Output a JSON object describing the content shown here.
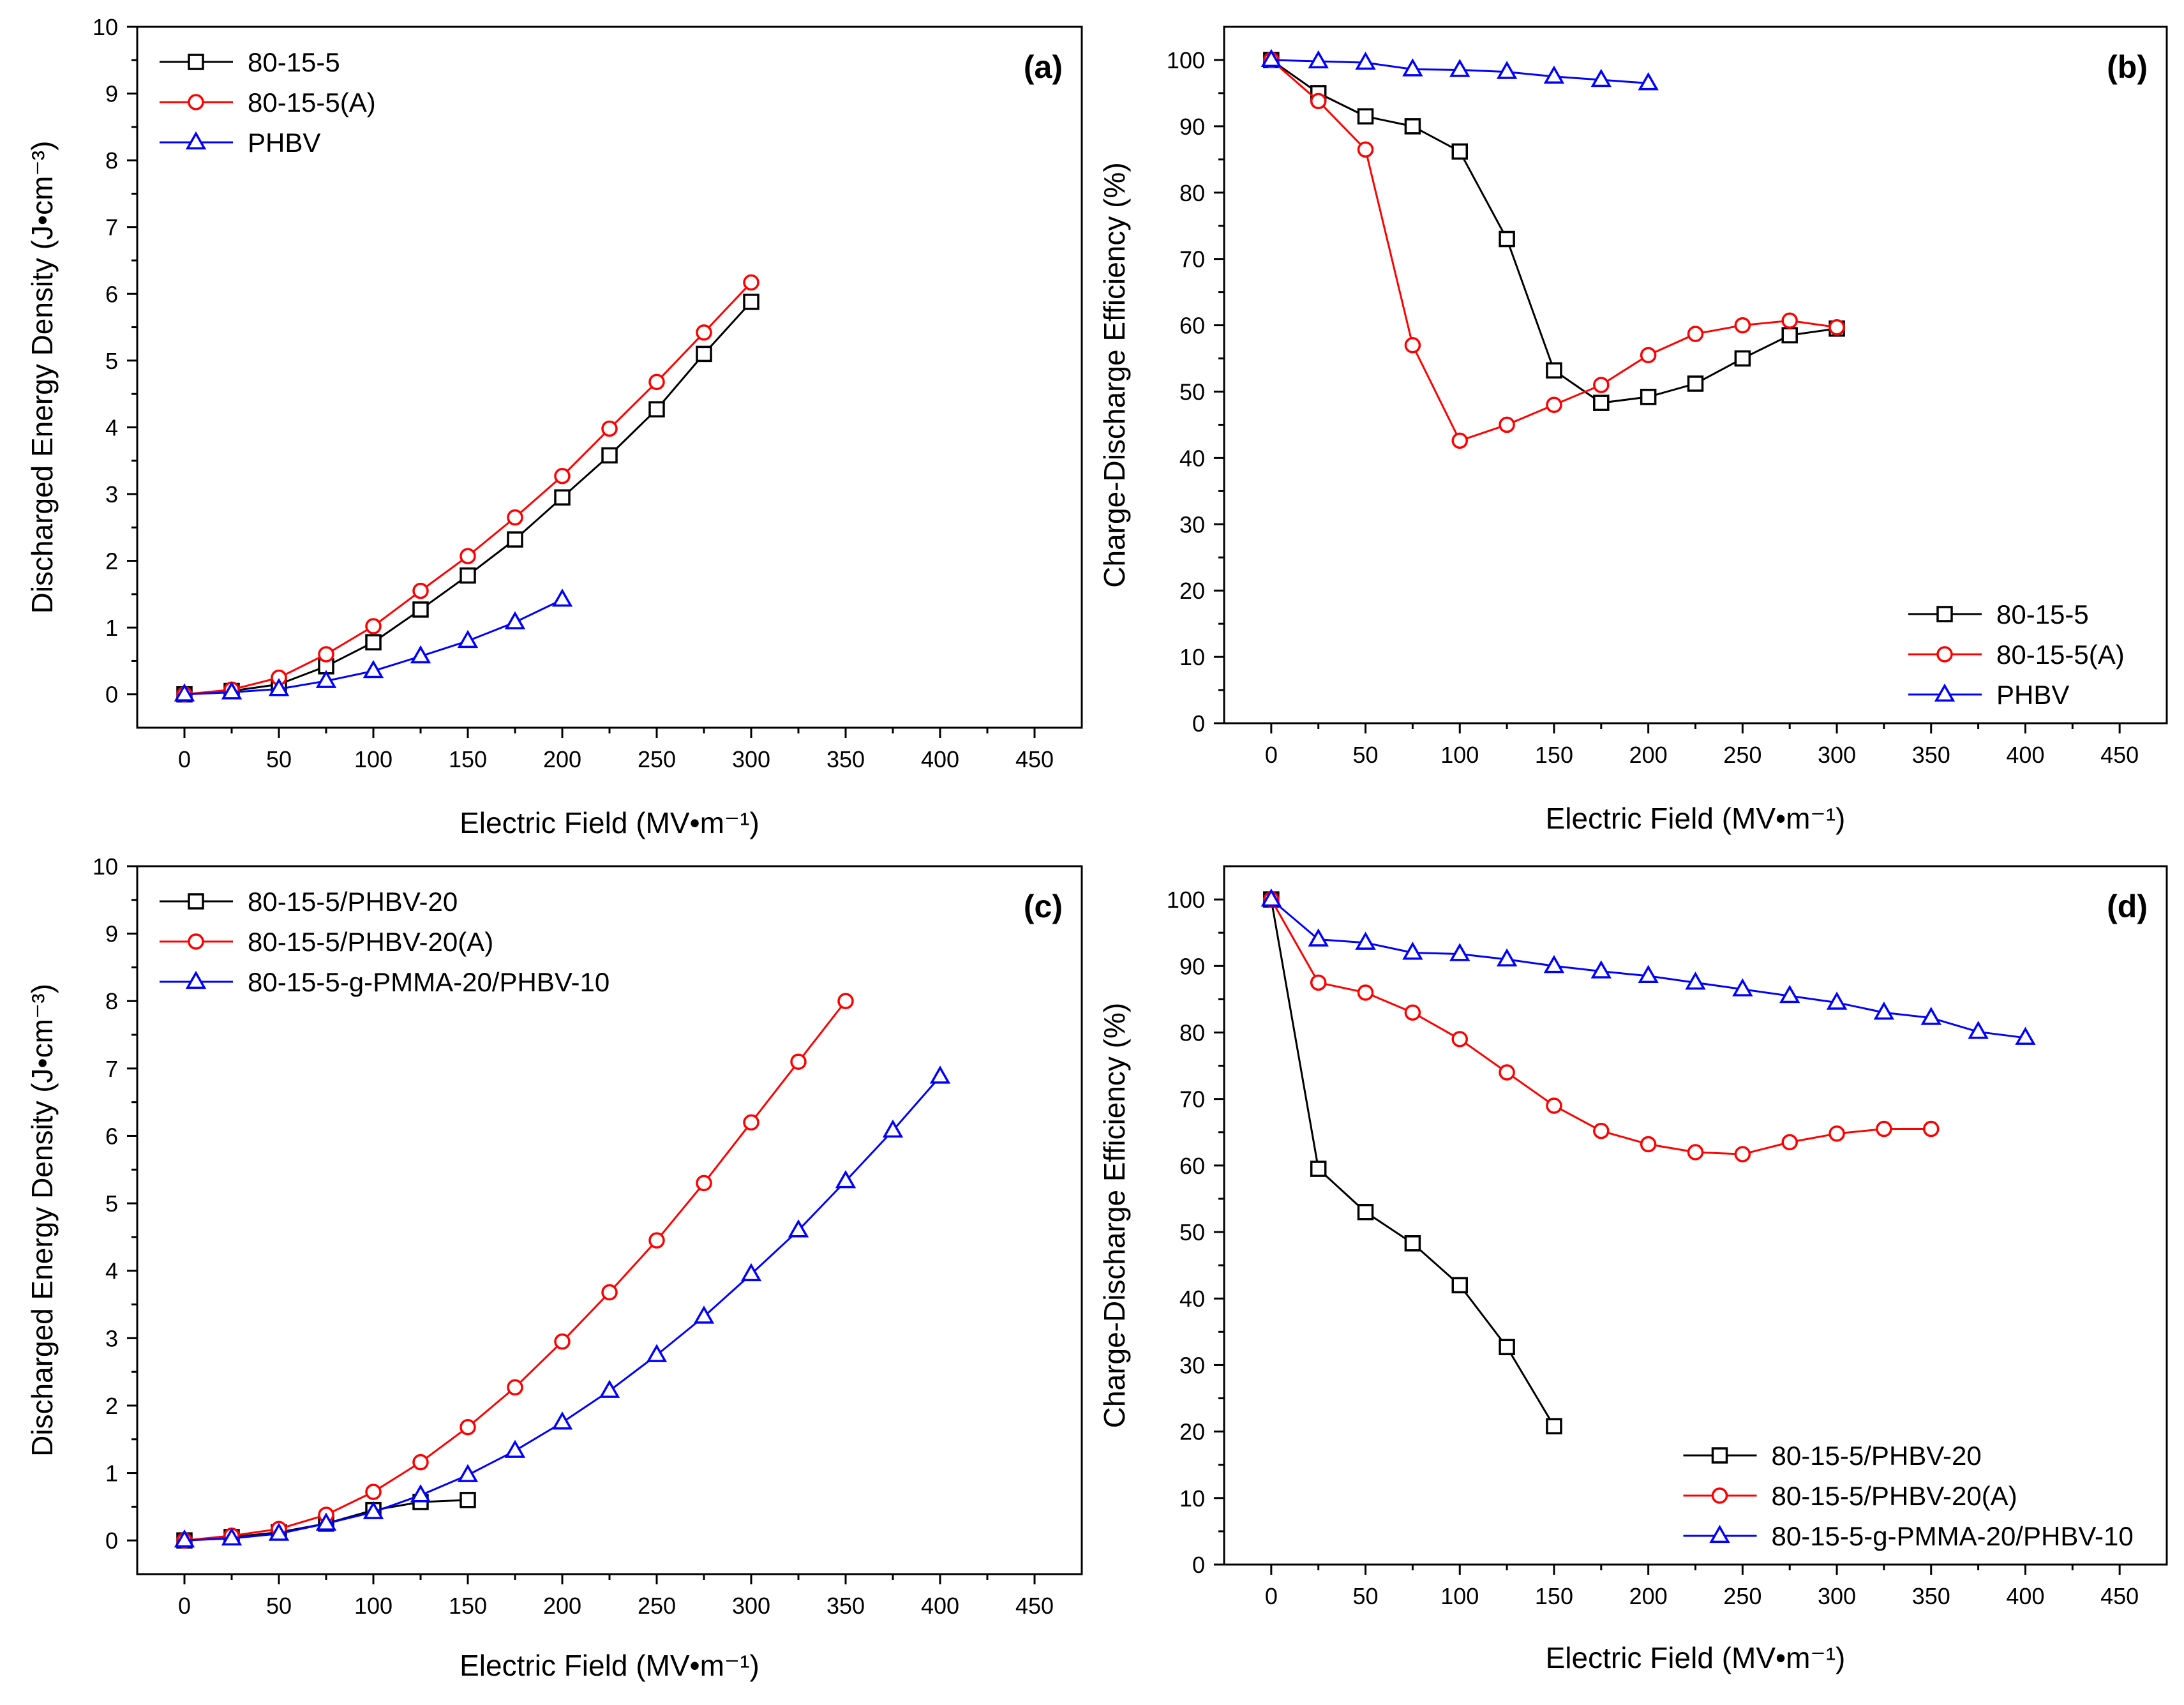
{
  "chart_data": [
    {
      "type": "line",
      "panel_label": "(a)",
      "xlabel": "Electric Field (MV•m⁻¹)",
      "ylabel": "Discharged Energy Density (J•cm⁻³)",
      "xlim": [
        -25,
        475
      ],
      "ylim": [
        -0.5,
        10
      ],
      "xticks": [
        0,
        50,
        100,
        150,
        200,
        250,
        300,
        350,
        400,
        450
      ],
      "yticks": [
        0,
        1,
        2,
        3,
        4,
        5,
        6,
        7,
        8,
        9,
        10
      ],
      "legend_position": "top-left",
      "series": [
        {
          "name": "80-15-5",
          "color": "#000000",
          "marker": "square",
          "x": [
            0,
            25,
            50,
            75,
            100,
            125,
            150,
            175,
            200,
            225,
            250,
            275,
            300
          ],
          "y": [
            0,
            0.05,
            0.15,
            0.42,
            0.78,
            1.27,
            1.78,
            2.32,
            2.95,
            3.58,
            4.27,
            5.1,
            5.88
          ]
        },
        {
          "name": "80-15-5(A)",
          "color": "#ff0000",
          "marker": "circle",
          "x": [
            0,
            25,
            50,
            75,
            100,
            125,
            150,
            175,
            200,
            225,
            250,
            275,
            300
          ],
          "y": [
            0,
            0.07,
            0.25,
            0.6,
            1.02,
            1.55,
            2.07,
            2.65,
            3.27,
            3.98,
            4.68,
            5.42,
            6.17
          ]
        },
        {
          "name": "PHBV",
          "color": "#0000ff",
          "marker": "triangle",
          "x": [
            0,
            25,
            50,
            75,
            100,
            125,
            150,
            175,
            200
          ],
          "y": [
            0,
            0.03,
            0.08,
            0.2,
            0.35,
            0.57,
            0.8,
            1.08,
            1.42
          ]
        }
      ]
    },
    {
      "type": "line",
      "panel_label": "(b)",
      "xlabel": "Electric Field (MV•m⁻¹)",
      "ylabel": "Charge-Discharge Efficiency (%)",
      "xlim": [
        -25,
        475
      ],
      "ylim": [
        0,
        105
      ],
      "xticks": [
        0,
        50,
        100,
        150,
        200,
        250,
        300,
        350,
        400,
        450
      ],
      "yticks": [
        0,
        10,
        20,
        30,
        40,
        50,
        60,
        70,
        80,
        90,
        100
      ],
      "legend_position": "bottom-right",
      "series": [
        {
          "name": "80-15-5",
          "color": "#000000",
          "marker": "square",
          "x": [
            0,
            25,
            50,
            75,
            100,
            125,
            150,
            175,
            200,
            225,
            250,
            275,
            300
          ],
          "y": [
            100,
            95,
            91.5,
            90,
            86.2,
            73,
            53.2,
            48.3,
            49.2,
            51.2,
            55,
            58.5,
            59.5
          ]
        },
        {
          "name": "80-15-5(A)",
          "color": "#ff0000",
          "marker": "circle",
          "x": [
            0,
            25,
            50,
            75,
            100,
            125,
            150,
            175,
            200,
            225,
            250,
            275,
            300
          ],
          "y": [
            100,
            93.8,
            86.5,
            57,
            42.6,
            45,
            48,
            51,
            55.5,
            58.7,
            60,
            60.7,
            59.7
          ]
        },
        {
          "name": "PHBV",
          "color": "#0000ff",
          "marker": "triangle",
          "x": [
            0,
            25,
            50,
            75,
            100,
            125,
            150,
            175,
            200
          ],
          "y": [
            100,
            99.8,
            99.6,
            98.6,
            98.5,
            98.2,
            97.5,
            97,
            96.5
          ]
        }
      ]
    },
    {
      "type": "line",
      "panel_label": "(c)",
      "xlabel": "Electric Field (MV•m⁻¹)",
      "ylabel": "Discharged Energy Density (J•cm⁻³)",
      "xlim": [
        -25,
        475
      ],
      "ylim": [
        -0.5,
        10
      ],
      "xticks": [
        0,
        50,
        100,
        150,
        200,
        250,
        300,
        350,
        400,
        450
      ],
      "yticks": [
        0,
        1,
        2,
        3,
        4,
        5,
        6,
        7,
        8,
        9,
        10
      ],
      "legend_position": "top-left",
      "series": [
        {
          "name": "80-15-5/PHBV-20",
          "color": "#000000",
          "marker": "square",
          "x": [
            0,
            25,
            50,
            75,
            100,
            125,
            150
          ],
          "y": [
            0,
            0.05,
            0.12,
            0.25,
            0.45,
            0.57,
            0.6
          ]
        },
        {
          "name": "80-15-5/PHBV-20(A)",
          "color": "#ff0000",
          "marker": "circle",
          "x": [
            0,
            25,
            50,
            75,
            100,
            125,
            150,
            175,
            200,
            225,
            250,
            275,
            300,
            325,
            350
          ],
          "y": [
            0,
            0.07,
            0.17,
            0.38,
            0.72,
            1.16,
            1.68,
            2.27,
            2.95,
            3.68,
            4.45,
            5.3,
            6.2,
            7.1,
            8.0
          ]
        },
        {
          "name": "80-15-5-g-PMMA-20/PHBV-10",
          "color": "#0000ff",
          "marker": "triangle",
          "x": [
            0,
            25,
            50,
            75,
            100,
            125,
            150,
            175,
            200,
            225,
            250,
            275,
            300,
            325,
            350,
            375,
            400
          ],
          "y": [
            0,
            0.03,
            0.1,
            0.25,
            0.42,
            0.67,
            0.97,
            1.33,
            1.75,
            2.22,
            2.75,
            3.32,
            3.95,
            4.6,
            5.33,
            6.08,
            6.88
          ]
        }
      ]
    },
    {
      "type": "line",
      "panel_label": "(d)",
      "xlabel": "Electric Field (MV•m⁻¹)",
      "ylabel": "Charge-Discharge Efficiency (%)",
      "xlim": [
        -25,
        475
      ],
      "ylim": [
        0,
        105
      ],
      "xticks": [
        0,
        50,
        100,
        150,
        200,
        250,
        300,
        350,
        400,
        450
      ],
      "yticks": [
        0,
        10,
        20,
        30,
        40,
        50,
        60,
        70,
        80,
        90,
        100
      ],
      "legend_position": "bottom-right",
      "series": [
        {
          "name": "80-15-5/PHBV-20",
          "color": "#000000",
          "marker": "square",
          "x": [
            0,
            25,
            50,
            75,
            100,
            125,
            150
          ],
          "y": [
            100,
            59.5,
            53,
            48.3,
            42,
            32.7,
            20.8
          ]
        },
        {
          "name": "80-15-5/PHBV-20(A)",
          "color": "#ff0000",
          "marker": "circle",
          "x": [
            0,
            25,
            50,
            75,
            100,
            125,
            150,
            175,
            200,
            225,
            250,
            275,
            300,
            325,
            350
          ],
          "y": [
            100,
            87.5,
            86,
            83,
            79,
            74,
            69,
            65.2,
            63.2,
            62,
            61.7,
            63.5,
            64.8,
            65.5,
            65.5
          ]
        },
        {
          "name": "80-15-5-g-PMMA-20/PHBV-10",
          "color": "#0000ff",
          "marker": "triangle",
          "x": [
            0,
            25,
            50,
            75,
            100,
            125,
            150,
            175,
            200,
            225,
            250,
            275,
            300,
            325,
            350,
            375,
            400
          ],
          "y": [
            100,
            94,
            93.5,
            92,
            91.8,
            91,
            90,
            89.2,
            88.5,
            87.5,
            86.5,
            85.5,
            84.5,
            83,
            82.2,
            80.1,
            79.2
          ]
        }
      ]
    }
  ]
}
